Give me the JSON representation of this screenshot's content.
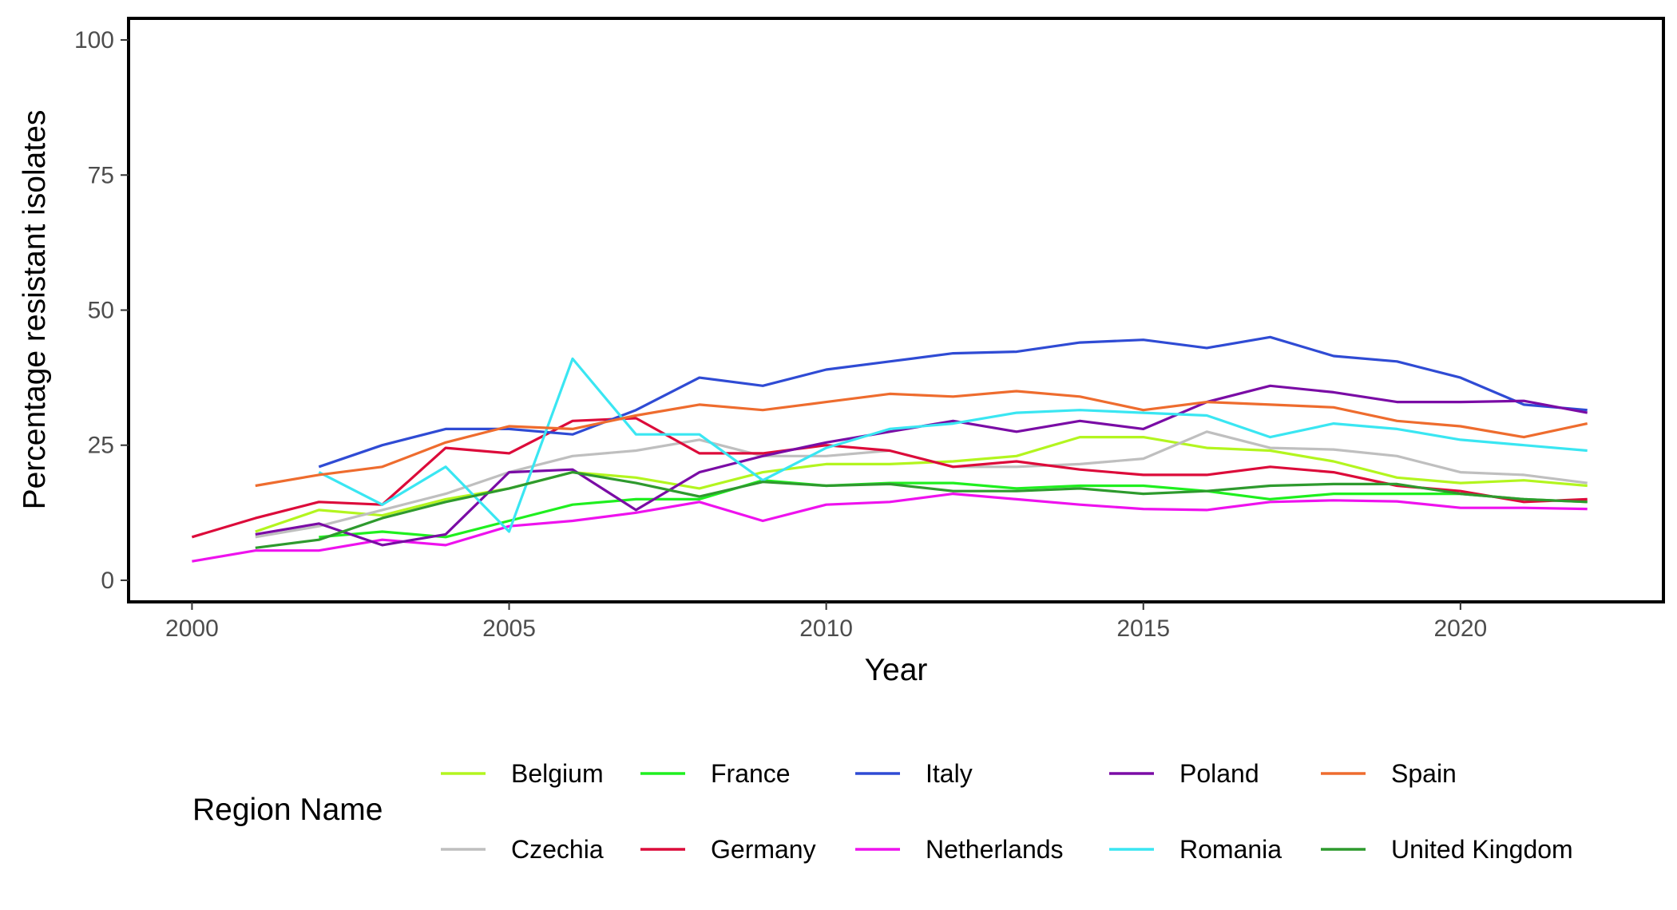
{
  "chart_data": {
    "type": "line",
    "title": "",
    "xlabel": "Year",
    "ylabel": "Percentage resistant isolates",
    "xlim": [
      1999,
      2023.2
    ],
    "ylim": [
      -4,
      104
    ],
    "x_ticks": [
      2000,
      2005,
      2010,
      2015,
      2020
    ],
    "y_ticks": [
      0,
      25,
      50,
      75,
      100
    ],
    "grid": false,
    "legend": {
      "title": "Region Name",
      "position": "bottom",
      "layout": "2 rows x 5 columns",
      "order": [
        "Belgium",
        "France",
        "Italy",
        "Poland",
        "Spain",
        "Czechia",
        "Germany",
        "Netherlands",
        "Romania",
        "United Kingdom"
      ]
    },
    "series": [
      {
        "name": "Belgium",
        "color": "#b3f51f",
        "x": [
          2001,
          2002,
          2003,
          2004,
          2005,
          2006,
          2007,
          2008,
          2009,
          2010,
          2011,
          2012,
          2013,
          2014,
          2015,
          2016,
          2017,
          2018,
          2019,
          2020,
          2021,
          2022
        ],
        "y": [
          9,
          13,
          12,
          15,
          17,
          20,
          19,
          17,
          20,
          21.5,
          21.5,
          22,
          23,
          26.5,
          26.5,
          24.5,
          24,
          22,
          19,
          18,
          18.5,
          17.5
        ]
      },
      {
        "name": "Czechia",
        "color": "#bfbfbf",
        "x": [
          2001,
          2002,
          2003,
          2004,
          2005,
          2006,
          2007,
          2008,
          2009,
          2010,
          2011,
          2012,
          2013,
          2014,
          2015,
          2016,
          2017,
          2018,
          2019,
          2020,
          2021,
          2022
        ],
        "y": [
          8,
          10,
          13,
          16,
          20,
          23,
          24,
          26,
          23,
          23,
          24,
          21,
          21,
          21.5,
          22.5,
          27.5,
          24.5,
          24.2,
          23,
          20,
          19.5,
          18
        ]
      },
      {
        "name": "France",
        "color": "#1fef1f",
        "x": [
          2002,
          2003,
          2004,
          2005,
          2006,
          2007,
          2008,
          2009,
          2010,
          2011,
          2012,
          2013,
          2014,
          2015,
          2016,
          2017,
          2018,
          2019,
          2020,
          2021,
          2022
        ],
        "y": [
          8,
          9,
          8,
          11,
          14,
          15,
          15,
          18.5,
          17.5,
          18,
          18,
          17,
          17.5,
          17.5,
          16.5,
          15,
          16,
          16,
          16,
          15,
          14.5
        ]
      },
      {
        "name": "Germany",
        "color": "#dc0b3a",
        "x": [
          2000,
          2001,
          2002,
          2003,
          2004,
          2005,
          2006,
          2007,
          2008,
          2009,
          2010,
          2011,
          2012,
          2013,
          2014,
          2015,
          2016,
          2017,
          2018,
          2019,
          2020,
          2021,
          2022
        ],
        "y": [
          8,
          11.5,
          14.5,
          14,
          24.5,
          23.5,
          29.5,
          30,
          23.5,
          23.5,
          25,
          24,
          21,
          22,
          20.5,
          19.5,
          19.5,
          21,
          20,
          17.5,
          16.5,
          14.5,
          15
        ]
      },
      {
        "name": "Italy",
        "color": "#2f4bd4",
        "x": [
          2002,
          2003,
          2004,
          2005,
          2006,
          2007,
          2008,
          2009,
          2010,
          2011,
          2012,
          2013,
          2014,
          2015,
          2016,
          2017,
          2018,
          2019,
          2020,
          2021,
          2022
        ],
        "y": [
          21,
          25,
          28,
          28,
          27,
          31.5,
          37.5,
          36,
          39,
          40.5,
          42,
          42.3,
          44,
          44.5,
          43,
          45,
          41.5,
          40.5,
          37.5,
          32.5,
          31.5
        ]
      },
      {
        "name": "Netherlands",
        "color": "#ee12ee",
        "x": [
          2000,
          2001,
          2002,
          2003,
          2004,
          2005,
          2006,
          2007,
          2008,
          2009,
          2010,
          2011,
          2012,
          2013,
          2014,
          2015,
          2016,
          2017,
          2018,
          2019,
          2020,
          2021,
          2022
        ],
        "y": [
          3.5,
          5.5,
          5.5,
          7.5,
          6.5,
          10,
          11,
          12.5,
          14.5,
          11,
          14,
          14.5,
          16,
          15,
          14,
          13.2,
          13,
          14.5,
          14.8,
          14.6,
          13.4,
          13.4,
          13.2
        ]
      },
      {
        "name": "Poland",
        "color": "#7a0ca5",
        "x": [
          2001,
          2002,
          2003,
          2004,
          2005,
          2006,
          2007,
          2008,
          2009,
          2010,
          2011,
          2012,
          2013,
          2014,
          2015,
          2016,
          2017,
          2018,
          2019,
          2020,
          2021,
          2022
        ],
        "y": [
          8.5,
          10.5,
          6.5,
          8.5,
          20,
          20.5,
          13,
          20,
          23,
          25.5,
          27.5,
          29.5,
          27.5,
          29.5,
          28,
          33,
          36,
          34.8,
          33,
          33,
          33.2,
          31
        ]
      },
      {
        "name": "Romania",
        "color": "#3ae6f2",
        "x": [
          2002,
          2003,
          2004,
          2005,
          2006,
          2007,
          2008,
          2009,
          2010,
          2011,
          2012,
          2013,
          2014,
          2015,
          2016,
          2017,
          2018,
          2019,
          2020,
          2021,
          2022
        ],
        "y": [
          20,
          14,
          21,
          9,
          41,
          27,
          27,
          18.5,
          24.5,
          28,
          29,
          31,
          31.5,
          31,
          30.5,
          26.5,
          29,
          28,
          26,
          25,
          24
        ]
      },
      {
        "name": "Spain",
        "color": "#ee6c2e",
        "x": [
          2001,
          2002,
          2003,
          2004,
          2005,
          2006,
          2007,
          2008,
          2009,
          2010,
          2011,
          2012,
          2013,
          2014,
          2015,
          2016,
          2017,
          2018,
          2019,
          2020,
          2021,
          2022
        ],
        "y": [
          17.5,
          19.5,
          21,
          25.5,
          28.5,
          28,
          30.5,
          32.5,
          31.5,
          33,
          34.5,
          34,
          35,
          34,
          31.5,
          33,
          32.5,
          32,
          29.5,
          28.5,
          26.5,
          29
        ]
      },
      {
        "name": "United Kingdom",
        "color": "#2e9a2e",
        "x": [
          2001,
          2002,
          2003,
          2004,
          2005,
          2006,
          2007,
          2008,
          2009,
          2010,
          2011,
          2012,
          2013,
          2014,
          2015,
          2016,
          2017,
          2018,
          2019,
          2020,
          2021,
          2022
        ],
        "y": [
          6,
          7.5,
          11.5,
          14.5,
          17,
          20,
          18,
          15.5,
          18.2,
          17.5,
          17.8,
          16.5,
          16.5,
          17,
          16,
          16.5,
          17.5,
          17.8,
          17.8,
          16,
          15,
          14.5
        ]
      }
    ]
  }
}
